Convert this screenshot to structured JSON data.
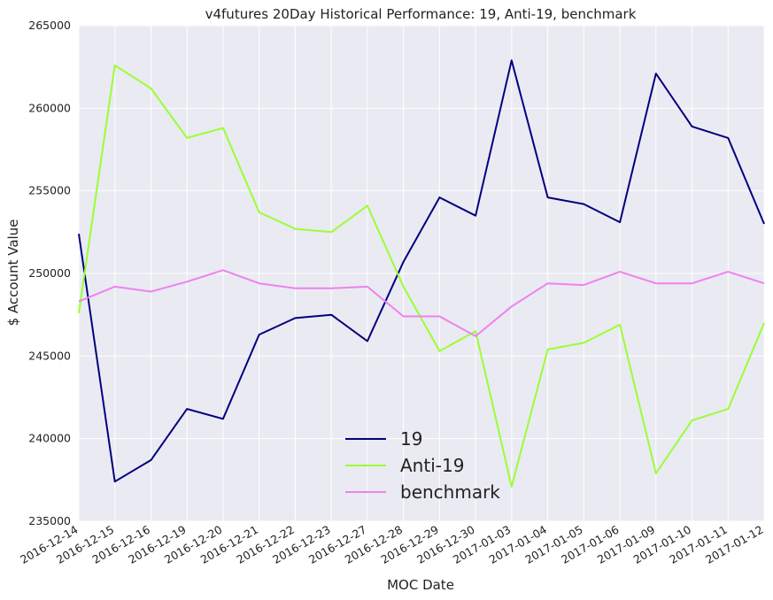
{
  "chart_data": {
    "type": "line",
    "title": "v4futures 20Day Historical Performance: 19, Anti-19, benchmark",
    "xlabel": "MOC Date",
    "ylabel": "$ Account Value",
    "categories": [
      "2016-12-14",
      "2016-12-15",
      "2016-12-16",
      "2016-12-19",
      "2016-12-20",
      "2016-12-21",
      "2016-12-22",
      "2016-12-23",
      "2016-12-27",
      "2016-12-28",
      "2016-12-29",
      "2016-12-30",
      "2017-01-03",
      "2017-01-04",
      "2017-01-05",
      "2017-01-06",
      "2017-01-09",
      "2017-01-10",
      "2017-01-11",
      "2017-01-12"
    ],
    "ylim": [
      235000,
      265000
    ],
    "yticks": [
      235000,
      240000,
      245000,
      250000,
      255000,
      260000,
      265000
    ],
    "ytick_labels": [
      "235000",
      "240000",
      "245000",
      "250000",
      "255000",
      "260000",
      "265000"
    ],
    "grid": true,
    "legend_position": "lower-center",
    "series": [
      {
        "name": "19",
        "color": "#000080",
        "values": [
          252400,
          237400,
          238700,
          241800,
          241200,
          246300,
          247300,
          247500,
          245900,
          250700,
          254600,
          253500,
          262900,
          254600,
          254200,
          253100,
          262100,
          258900,
          258200,
          253000
        ]
      },
      {
        "name": "Anti-19",
        "color": "#99ff33",
        "values": [
          247600,
          262600,
          261200,
          258200,
          258800,
          253700,
          252700,
          252500,
          254100,
          249200,
          245300,
          246500,
          237100,
          245400,
          245800,
          246900,
          237900,
          241100,
          241800,
          247000
        ]
      },
      {
        "name": "benchmark",
        "color": "#ee82ee",
        "values": [
          248300,
          249200,
          248900,
          249500,
          250200,
          249400,
          249100,
          249100,
          249200,
          247400,
          247400,
          246200,
          248000,
          249400,
          249300,
          250100,
          249400,
          249400,
          250100,
          249400
        ]
      }
    ],
    "background": "#eaeaf2"
  }
}
